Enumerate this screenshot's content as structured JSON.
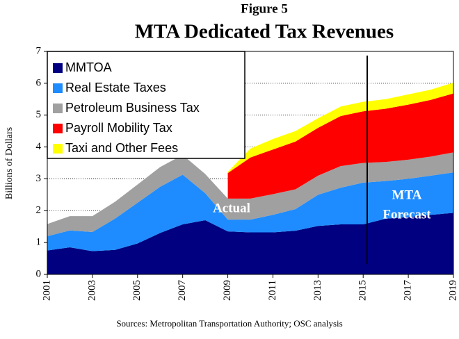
{
  "chart_data": {
    "type": "stacked_area",
    "figure_label": "Figure 5",
    "title": "MTA Dedicated Tax Revenues",
    "ylabel": "Billions of Dollars",
    "source": "Sources: Metropolitan Transportation Authority; OSC analysis",
    "annotations": [
      "Actual",
      "MTA",
      "Forecast"
    ],
    "x": [
      2001,
      2002,
      2003,
      2004,
      2005,
      2006,
      2007,
      2008,
      2009,
      2010,
      2011,
      2012,
      2013,
      2014,
      2015,
      2016,
      2017,
      2018,
      2019
    ],
    "xlim": [
      2001,
      2019
    ],
    "xticks": [
      2001,
      2003,
      2005,
      2007,
      2009,
      2011,
      2013,
      2015,
      2017,
      2019
    ],
    "ylim": [
      0,
      7
    ],
    "yticks": [
      0,
      1,
      2,
      3,
      4,
      5,
      6,
      7
    ],
    "grid": true,
    "legend": "top-left",
    "series": [
      {
        "name": "MMTOA",
        "color": "#000080",
        "values": [
          0.75,
          0.85,
          0.73,
          0.77,
          0.97,
          1.3,
          1.57,
          1.7,
          1.35,
          1.32,
          1.32,
          1.37,
          1.52,
          1.57,
          1.57,
          1.75,
          1.8,
          1.87,
          1.93
        ]
      },
      {
        "name": "Real Estate Taxes",
        "color": "#1e8cff",
        "values": [
          0.45,
          0.53,
          0.6,
          0.98,
          1.28,
          1.45,
          1.56,
          0.85,
          0.37,
          0.4,
          0.55,
          0.68,
          0.98,
          1.15,
          1.31,
          1.18,
          1.2,
          1.23,
          1.27
        ]
      },
      {
        "name": "Petroleum Business Tax",
        "color": "#a0a0a0",
        "values": [
          0.38,
          0.45,
          0.5,
          0.53,
          0.57,
          0.62,
          0.62,
          0.6,
          0.66,
          0.66,
          0.65,
          0.62,
          0.6,
          0.68,
          0.62,
          0.6,
          0.6,
          0.6,
          0.63
        ]
      },
      {
        "name": "Payroll Mobility Tax",
        "color": "#ff0000",
        "values": [
          null,
          null,
          null,
          null,
          null,
          null,
          null,
          null,
          0.8,
          1.29,
          1.4,
          1.5,
          1.5,
          1.57,
          1.62,
          1.67,
          1.73,
          1.78,
          1.85
        ]
      },
      {
        "name": "Taxi and Other Fees",
        "color": "#ffff00",
        "values": [
          null,
          null,
          null,
          null,
          null,
          null,
          null,
          null,
          0.04,
          0.28,
          0.33,
          0.33,
          0.3,
          0.3,
          0.3,
          0.3,
          0.32,
          0.32,
          0.34
        ]
      }
    ]
  }
}
